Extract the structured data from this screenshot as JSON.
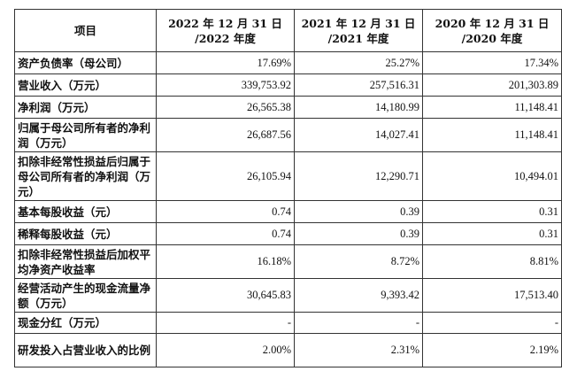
{
  "table": {
    "headers": [
      "项目",
      "2022 年 12 月 31 日\n/2022 年度",
      "2021 年 12 月 31 日\n/2021 年度",
      "2020 年 12 月 31 日\n/2020 年度"
    ],
    "rows": [
      {
        "label": "资产负债率（母公司）",
        "values": [
          "17.69%",
          "25.27%",
          "17.34%"
        ]
      },
      {
        "label": "营业收入（万元）",
        "values": [
          "339,753.92",
          "257,516.31",
          "201,303.89"
        ]
      },
      {
        "label": "净利润（万元）",
        "values": [
          "26,565.38",
          "14,180.99",
          "11,148.41"
        ]
      },
      {
        "label": "归属于母公司所有者的净利润（万元）",
        "values": [
          "26,687.56",
          "14,027.41",
          "11,148.41"
        ]
      },
      {
        "label": "扣除非经常性损益后归属于母公司所有者的净利润（万元）",
        "values": [
          "26,105.94",
          "12,290.71",
          "10,494.01"
        ]
      },
      {
        "label": "基本每股收益（元）",
        "values": [
          "0.74",
          "0.39",
          "0.31"
        ]
      },
      {
        "label": "稀释每股收益（元）",
        "values": [
          "0.74",
          "0.39",
          "0.31"
        ]
      },
      {
        "label": "扣除非经常性损益后加权平均净资产收益率",
        "values": [
          "16.18%",
          "8.72%",
          "8.81%"
        ]
      },
      {
        "label": "经营活动产生的现金流量净额（万元）",
        "values": [
          "30,645.83",
          "9,393.42",
          "17,513.40"
        ]
      },
      {
        "label": "现金分红（万元）",
        "values": [
          "-",
          "-",
          "-"
        ]
      },
      {
        "label": "研发投入占营业收入的比例",
        "values": [
          "2.00%",
          "2.31%",
          "2.19%"
        ]
      }
    ]
  }
}
